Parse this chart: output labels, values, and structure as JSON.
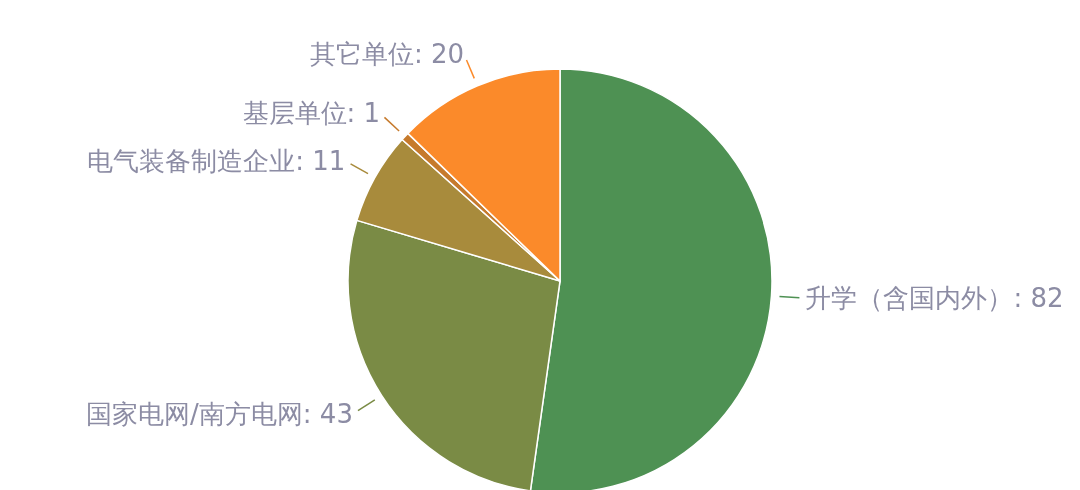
{
  "chart_data": {
    "type": "pie",
    "categories": [
      "升学（含国内外）",
      "国家电网/南方电网",
      "电气装备制造企业",
      "基层单位",
      "其它单位"
    ],
    "values": [
      82,
      43,
      11,
      1,
      20
    ],
    "value_labels": [
      ": 82",
      ": 43",
      ": 11",
      ": 1",
      ": 20"
    ],
    "colors": [
      "#4e9153",
      "#7a8b45",
      "#a88b3c",
      "#c67a2c",
      "#fb8a2a"
    ]
  }
}
